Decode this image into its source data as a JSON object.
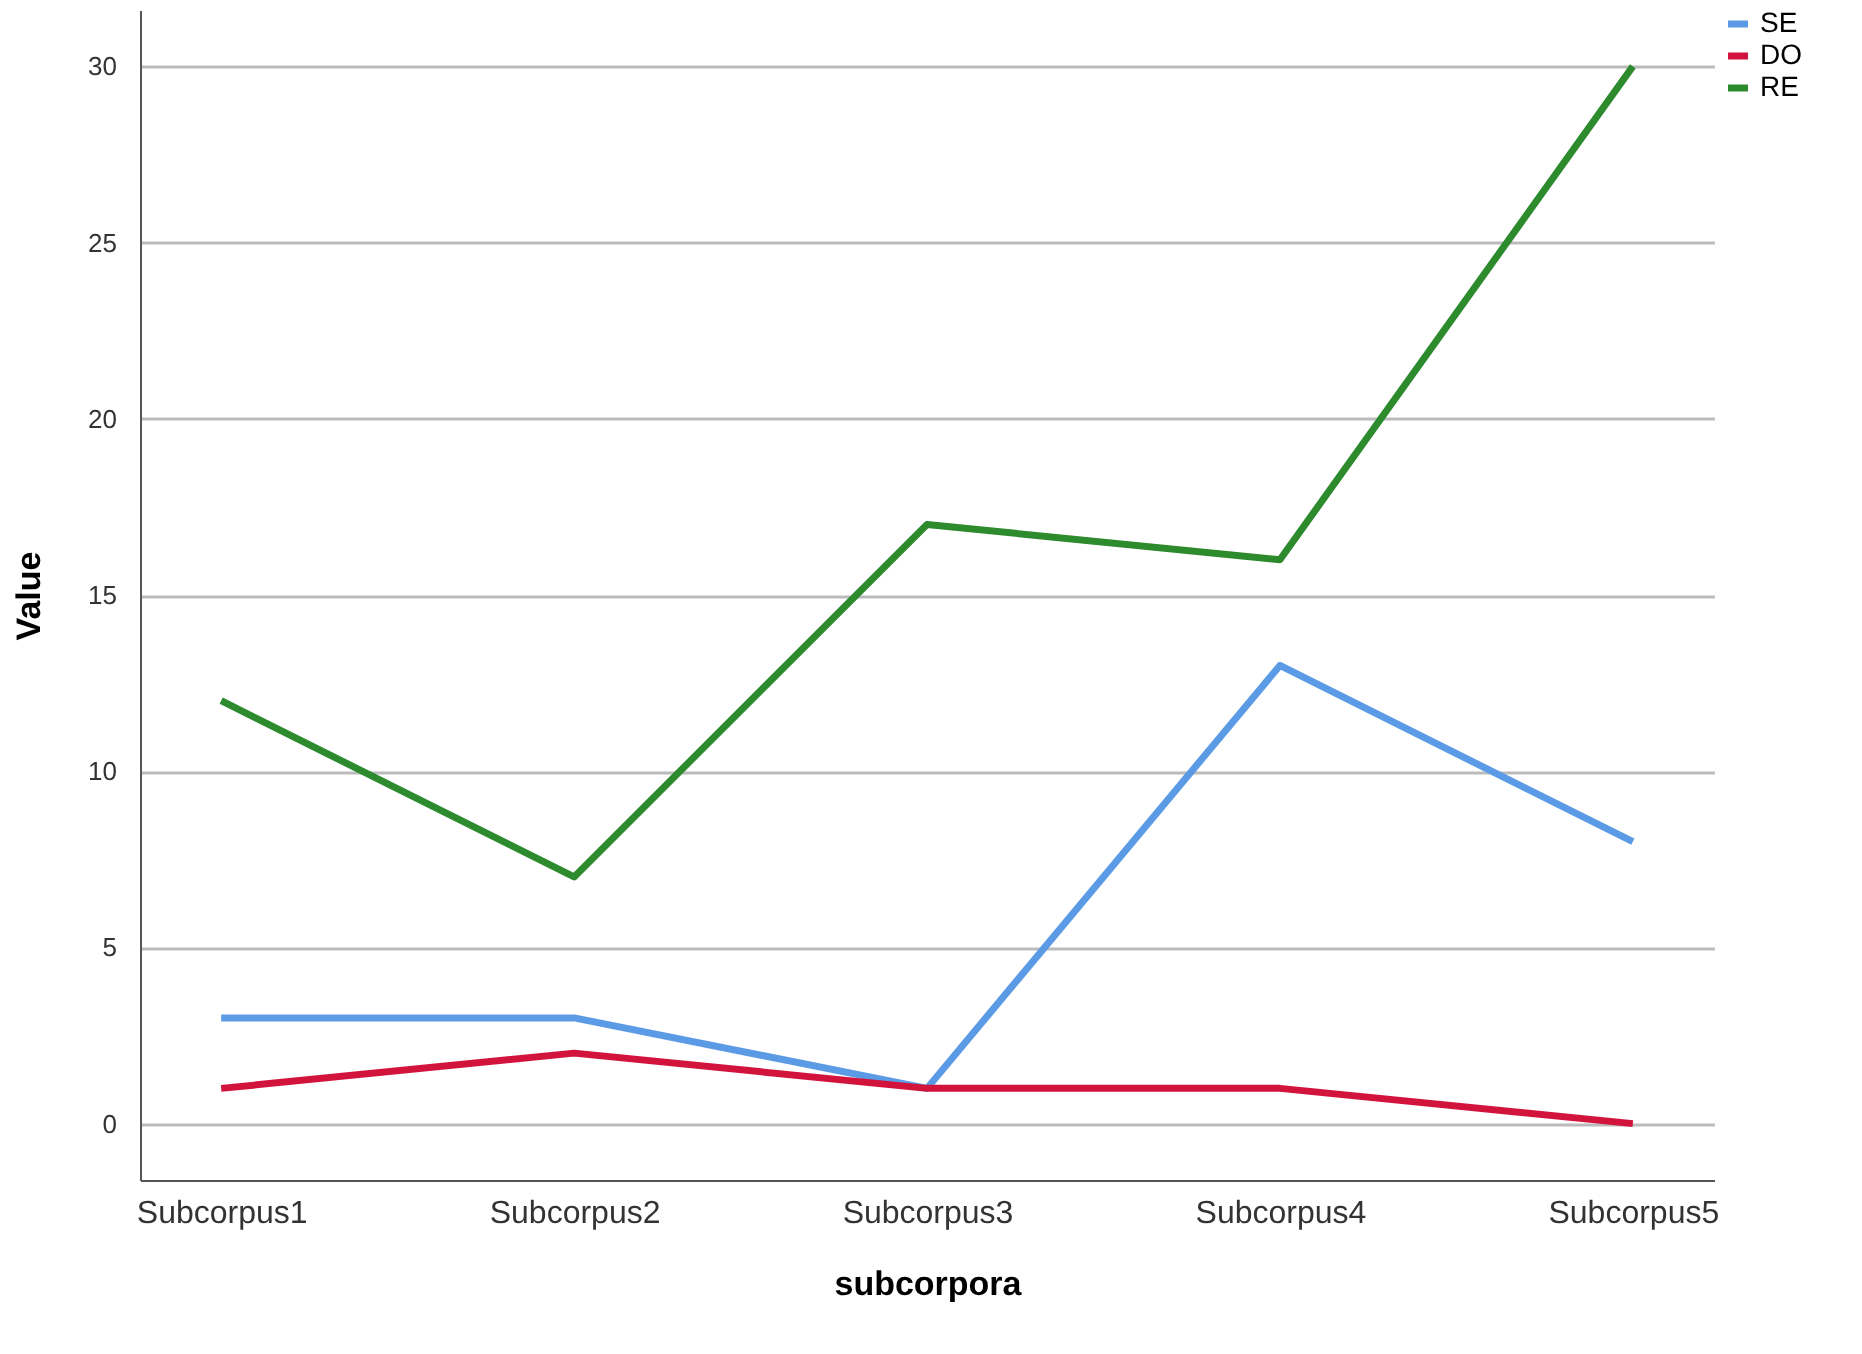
{
  "chart_data": {
    "type": "line",
    "xlabel": "subcorpora",
    "ylabel": "Value",
    "categories": [
      "Subcorpus1",
      "Subcorpus2",
      "Subcorpus3",
      "Subcorpus4",
      "Subcorpus5"
    ],
    "series": [
      {
        "name": "SE",
        "color": "#5b9be6",
        "values": [
          3,
          3,
          1,
          13,
          8
        ]
      },
      {
        "name": "DO",
        "color": "#d2143c",
        "values": [
          1,
          2,
          1,
          1,
          0
        ]
      },
      {
        "name": "RE",
        "color": "#2d8a2d",
        "values": [
          12,
          7,
          17,
          16,
          30
        ]
      }
    ],
    "ylim": [
      -1.6,
      31.6
    ],
    "yticks": [
      0,
      5,
      10,
      15,
      20,
      25,
      30
    ],
    "grid": "y",
    "legend": "top right",
    "marker": "none",
    "line_style": "solid"
  }
}
